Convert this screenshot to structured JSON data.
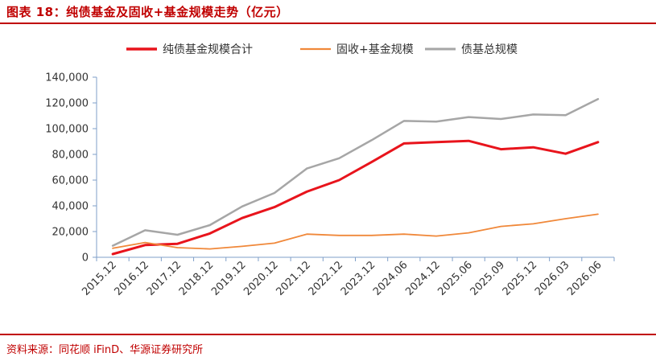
{
  "header": {
    "title": "图表 18：纯债基金及固收+基金规模走势（亿元）"
  },
  "footer": {
    "source": "资料来源：同花顺 iFinD、华源证券研究所"
  },
  "chart_data": {
    "type": "line",
    "title": "图表 18：纯债基金及固收+基金规模走势（亿元）",
    "x": [
      "2015.12",
      "2016.12",
      "2017.12",
      "2018.12",
      "2019.12",
      "2020.12",
      "2021.12",
      "2022.12",
      "2023.12",
      "2024.06",
      "2024.12",
      "2025.06",
      "2025.09",
      "2025.12",
      "2026.03",
      "2026.06"
    ],
    "ylim": [
      0,
      140000
    ],
    "yticks": [
      0,
      20000,
      40000,
      60000,
      80000,
      100000,
      120000,
      140000
    ],
    "ytick_labels": [
      "0",
      "20,000",
      "40,000",
      "60,000",
      "80,000",
      "100,000",
      "120,000",
      "140,000"
    ],
    "grid": false,
    "legend_position": "top-center",
    "series": [
      {
        "name": "纯债基金规模合计",
        "color": "#e8141c",
        "width": 3,
        "values": [
          2500,
          9500,
          10500,
          18500,
          30500,
          39000,
          51000,
          60000,
          74000,
          88500,
          89500,
          90500,
          84000,
          85500,
          80500,
          89500
        ]
      },
      {
        "name": "固收+基金规模",
        "color": "#f0883a",
        "width": 1.8,
        "values": [
          7000,
          11500,
          7500,
          6500,
          8500,
          11000,
          18000,
          17000,
          17000,
          18000,
          16500,
          19000,
          24000,
          26000,
          30000,
          33500
        ]
      },
      {
        "name": "债基总规模",
        "color": "#a6a6a6",
        "width": 2.5,
        "values": [
          9000,
          21000,
          17500,
          25000,
          39500,
          50000,
          69000,
          77000,
          91000,
          106000,
          105500,
          109000,
          107500,
          111000,
          110500,
          123000
        ]
      }
    ]
  }
}
